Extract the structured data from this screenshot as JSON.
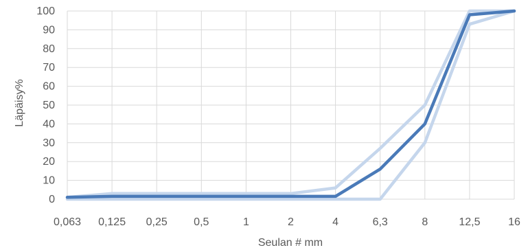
{
  "chart_data": {
    "type": "line",
    "title": "",
    "xlabel": "Seulan # mm",
    "ylabel": "Läpäisy%",
    "categories": [
      "0,063",
      "0,125",
      "0,25",
      "0,5",
      "1",
      "2",
      "4",
      "6,3",
      "8",
      "12,5",
      "16"
    ],
    "ylim": [
      0,
      100
    ],
    "ytick_step": 10,
    "yticks": [
      "0",
      "10",
      "20",
      "30",
      "40",
      "50",
      "60",
      "70",
      "80",
      "90",
      "100"
    ],
    "grid": true,
    "legend": "none",
    "series": [
      {
        "values": [
          1,
          3,
          3,
          3,
          3,
          3,
          6,
          27,
          50,
          100,
          100
        ],
        "color": "#c5d6ec"
      },
      {
        "values": [
          0,
          0,
          0,
          0,
          0,
          0,
          0,
          0,
          30,
          93,
          100
        ],
        "color": "#c5d6ec"
      },
      {
        "values": [
          1,
          1.5,
          1.5,
          1.5,
          1.5,
          1.5,
          1.5,
          16,
          40,
          98,
          100
        ],
        "color": "#4a7ab8"
      }
    ]
  }
}
